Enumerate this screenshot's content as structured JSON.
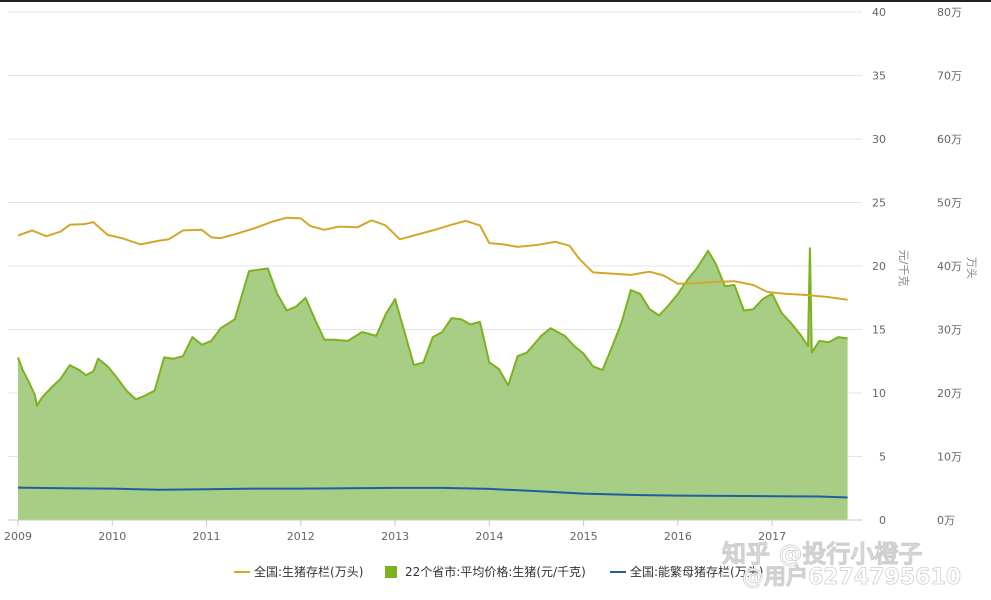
{
  "chart_data": {
    "type": "line",
    "x_ticks": [
      "2009",
      "2010",
      "2011",
      "2012",
      "2013",
      "2014",
      "2015",
      "2016",
      "2017"
    ],
    "x_range": [
      2009.0,
      2017.9
    ],
    "left_axis": {
      "title": "元/千克",
      "ticks": [
        "0",
        "5",
        "10",
        "15",
        "20",
        "25",
        "30",
        "35",
        "40"
      ],
      "range": [
        0,
        40
      ]
    },
    "right_axis": {
      "title": "万头",
      "ticks": [
        "0万",
        "10万",
        "20万",
        "30万",
        "40万",
        "50万",
        "60万",
        "70万",
        "80万"
      ],
      "range": [
        0,
        80
      ]
    },
    "grid": true,
    "legend_position": "bottom",
    "series": [
      {
        "name": "全国:生猪存栏(万头)",
        "axis": "right",
        "style": "line",
        "color": "#d4a72c",
        "points": [
          [
            2009.0,
            44.8
          ],
          [
            2009.15,
            45.6
          ],
          [
            2009.3,
            44.7
          ],
          [
            2009.45,
            45.4
          ],
          [
            2009.55,
            46.5
          ],
          [
            2009.7,
            46.6
          ],
          [
            2009.8,
            46.9
          ],
          [
            2009.95,
            44.9
          ],
          [
            2010.1,
            44.4
          ],
          [
            2010.3,
            43.4
          ],
          [
            2010.5,
            44.0
          ],
          [
            2010.6,
            44.2
          ],
          [
            2010.75,
            45.6
          ],
          [
            2010.95,
            45.7
          ],
          [
            2011.05,
            44.5
          ],
          [
            2011.15,
            44.4
          ],
          [
            2011.3,
            45.0
          ],
          [
            2011.5,
            45.9
          ],
          [
            2011.7,
            47.0
          ],
          [
            2011.85,
            47.6
          ],
          [
            2012.0,
            47.5
          ],
          [
            2012.1,
            46.3
          ],
          [
            2012.25,
            45.7
          ],
          [
            2012.4,
            46.2
          ],
          [
            2012.6,
            46.1
          ],
          [
            2012.75,
            47.2
          ],
          [
            2012.9,
            46.4
          ],
          [
            2013.05,
            44.2
          ],
          [
            2013.2,
            44.8
          ],
          [
            2013.4,
            45.6
          ],
          [
            2013.6,
            46.5
          ],
          [
            2013.75,
            47.1
          ],
          [
            2013.9,
            46.4
          ],
          [
            2014.0,
            43.6
          ],
          [
            2014.15,
            43.4
          ],
          [
            2014.3,
            43.0
          ],
          [
            2014.5,
            43.3
          ],
          [
            2014.7,
            43.8
          ],
          [
            2014.85,
            43.2
          ],
          [
            2014.95,
            41.2
          ],
          [
            2015.1,
            39.0
          ],
          [
            2015.3,
            38.8
          ],
          [
            2015.5,
            38.6
          ],
          [
            2015.7,
            39.1
          ],
          [
            2015.85,
            38.5
          ],
          [
            2016.0,
            37.2
          ],
          [
            2016.2,
            37.3
          ],
          [
            2016.4,
            37.5
          ],
          [
            2016.6,
            37.6
          ],
          [
            2016.8,
            37.0
          ],
          [
            2016.95,
            35.9
          ],
          [
            2017.15,
            35.6
          ],
          [
            2017.3,
            35.5
          ],
          [
            2017.45,
            35.3
          ],
          [
            2017.6,
            35.1
          ],
          [
            2017.8,
            34.7
          ]
        ]
      },
      {
        "name": "22个省市:平均价格:生猪(元/千克)",
        "axis": "left",
        "style": "area",
        "color": "#7db21f",
        "fill": "#a8cd85",
        "points": [
          [
            2009.0,
            12.8
          ],
          [
            2009.05,
            11.8
          ],
          [
            2009.12,
            10.8
          ],
          [
            2009.18,
            9.8
          ],
          [
            2009.2,
            9.0
          ],
          [
            2009.25,
            9.6
          ],
          [
            2009.35,
            10.4
          ],
          [
            2009.45,
            11.1
          ],
          [
            2009.55,
            12.2
          ],
          [
            2009.65,
            11.8
          ],
          [
            2009.72,
            11.4
          ],
          [
            2009.8,
            11.7
          ],
          [
            2009.85,
            12.7
          ],
          [
            2009.95,
            12.1
          ],
          [
            2010.05,
            11.2
          ],
          [
            2010.15,
            10.2
          ],
          [
            2010.25,
            9.5
          ],
          [
            2010.35,
            9.8
          ],
          [
            2010.45,
            10.2
          ],
          [
            2010.55,
            12.8
          ],
          [
            2010.65,
            12.7
          ],
          [
            2010.75,
            12.9
          ],
          [
            2010.85,
            14.4
          ],
          [
            2010.95,
            13.8
          ],
          [
            2011.05,
            14.1
          ],
          [
            2011.15,
            15.1
          ],
          [
            2011.3,
            15.8
          ],
          [
            2011.45,
            19.6
          ],
          [
            2011.55,
            19.7
          ],
          [
            2011.65,
            19.8
          ],
          [
            2011.75,
            17.8
          ],
          [
            2011.85,
            16.5
          ],
          [
            2011.95,
            16.8
          ],
          [
            2012.05,
            17.5
          ],
          [
            2012.15,
            15.8
          ],
          [
            2012.25,
            14.2
          ],
          [
            2012.35,
            14.2
          ],
          [
            2012.5,
            14.1
          ],
          [
            2012.65,
            14.8
          ],
          [
            2012.8,
            14.5
          ],
          [
            2012.9,
            16.2
          ],
          [
            2013.0,
            17.4
          ],
          [
            2013.1,
            14.8
          ],
          [
            2013.2,
            12.2
          ],
          [
            2013.3,
            12.4
          ],
          [
            2013.4,
            14.4
          ],
          [
            2013.5,
            14.8
          ],
          [
            2013.6,
            15.9
          ],
          [
            2013.7,
            15.8
          ],
          [
            2013.8,
            15.4
          ],
          [
            2013.9,
            15.6
          ],
          [
            2014.0,
            12.4
          ],
          [
            2014.1,
            11.9
          ],
          [
            2014.2,
            10.6
          ],
          [
            2014.3,
            12.9
          ],
          [
            2014.4,
            13.2
          ],
          [
            2014.55,
            14.5
          ],
          [
            2014.65,
            15.1
          ],
          [
            2014.8,
            14.5
          ],
          [
            2014.9,
            13.7
          ],
          [
            2015.0,
            13.1
          ],
          [
            2015.1,
            12.1
          ],
          [
            2015.2,
            11.8
          ],
          [
            2015.3,
            13.6
          ],
          [
            2015.4,
            15.5
          ],
          [
            2015.5,
            18.1
          ],
          [
            2015.6,
            17.8
          ],
          [
            2015.7,
            16.6
          ],
          [
            2015.8,
            16.1
          ],
          [
            2015.9,
            16.9
          ],
          [
            2016.0,
            17.8
          ],
          [
            2016.1,
            18.9
          ],
          [
            2016.2,
            19.8
          ],
          [
            2016.32,
            21.2
          ],
          [
            2016.4,
            20.2
          ],
          [
            2016.5,
            18.4
          ],
          [
            2016.6,
            18.5
          ],
          [
            2016.7,
            16.5
          ],
          [
            2016.8,
            16.6
          ],
          [
            2016.9,
            17.4
          ],
          [
            2017.0,
            17.8
          ],
          [
            2017.1,
            16.3
          ],
          [
            2017.2,
            15.5
          ],
          [
            2017.3,
            14.6
          ],
          [
            2017.38,
            13.7
          ],
          [
            2017.4,
            21.4
          ],
          [
            2017.42,
            13.2
          ],
          [
            2017.5,
            14.1
          ],
          [
            2017.6,
            14.0
          ],
          [
            2017.7,
            14.4
          ],
          [
            2017.8,
            14.3
          ]
        ]
      },
      {
        "name": "全国:能繁母猪存栏(万头)",
        "axis": "right",
        "style": "line",
        "color": "#1f5fa0",
        "points": [
          [
            2009.0,
            5.1
          ],
          [
            2009.5,
            5.0
          ],
          [
            2010.0,
            4.95
          ],
          [
            2010.5,
            4.75
          ],
          [
            2011.0,
            4.85
          ],
          [
            2011.5,
            4.95
          ],
          [
            2012.0,
            4.95
          ],
          [
            2012.5,
            5.0
          ],
          [
            2013.0,
            5.05
          ],
          [
            2013.5,
            5.05
          ],
          [
            2014.0,
            4.9
          ],
          [
            2014.5,
            4.55
          ],
          [
            2015.0,
            4.15
          ],
          [
            2015.5,
            3.95
          ],
          [
            2016.0,
            3.85
          ],
          [
            2016.5,
            3.8
          ],
          [
            2017.0,
            3.75
          ],
          [
            2017.5,
            3.7
          ],
          [
            2017.8,
            3.55
          ]
        ]
      }
    ]
  },
  "watermark": {
    "line1": "知乎 @投行小橙子",
    "line2": "@用户6274795610"
  }
}
